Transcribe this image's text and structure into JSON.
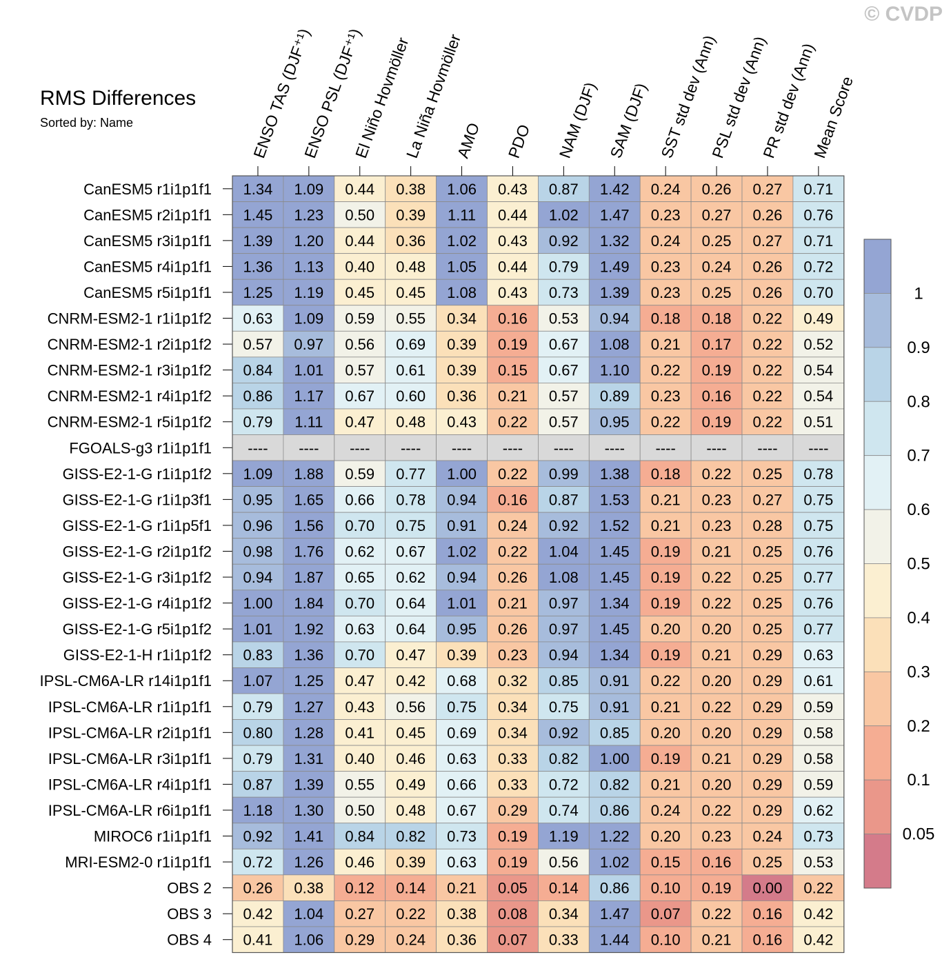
{
  "header": {
    "title": "RMS Differences",
    "subtitle": "Sorted by: Name",
    "copyright": "© CVDP"
  },
  "chart_data": {
    "type": "heatmap",
    "title": "RMS Differences",
    "columns": [
      "ENSO TAS (DJF⁺¹)",
      "ENSO PSL (DJF⁺¹)",
      "El Niño Hovmöller",
      "La Niña Hovmöller",
      "AMO",
      "PDO",
      "NAM (DJF)",
      "SAM (DJF)",
      "SST std dev (Ann)",
      "PSL std dev (Ann)",
      "PR std dev (Ann)",
      "Mean Score"
    ],
    "rows": [
      {
        "name": "CanESM5 r1i1p1f1",
        "values": [
          "1.34",
          "1.09",
          "0.44",
          "0.38",
          "1.06",
          "0.43",
          "0.87",
          "1.42",
          "0.24",
          "0.26",
          "0.27",
          "0.71"
        ]
      },
      {
        "name": "CanESM5 r2i1p1f1",
        "values": [
          "1.45",
          "1.23",
          "0.50",
          "0.39",
          "1.11",
          "0.44",
          "1.02",
          "1.47",
          "0.23",
          "0.27",
          "0.26",
          "0.76"
        ]
      },
      {
        "name": "CanESM5 r3i1p1f1",
        "values": [
          "1.39",
          "1.20",
          "0.44",
          "0.36",
          "1.02",
          "0.43",
          "0.92",
          "1.32",
          "0.24",
          "0.25",
          "0.27",
          "0.71"
        ]
      },
      {
        "name": "CanESM5 r4i1p1f1",
        "values": [
          "1.36",
          "1.13",
          "0.40",
          "0.48",
          "1.05",
          "0.44",
          "0.79",
          "1.49",
          "0.23",
          "0.24",
          "0.26",
          "0.72"
        ]
      },
      {
        "name": "CanESM5 r5i1p1f1",
        "values": [
          "1.25",
          "1.19",
          "0.45",
          "0.45",
          "1.08",
          "0.43",
          "0.73",
          "1.39",
          "0.23",
          "0.25",
          "0.26",
          "0.70"
        ]
      },
      {
        "name": "CNRM-ESM2-1 r1i1p1f2",
        "values": [
          "0.63",
          "1.09",
          "0.59",
          "0.55",
          "0.34",
          "0.16",
          "0.53",
          "0.94",
          "0.18",
          "0.18",
          "0.22",
          "0.49"
        ]
      },
      {
        "name": "CNRM-ESM2-1 r2i1p1f2",
        "values": [
          "0.57",
          "0.97",
          "0.56",
          "0.69",
          "0.39",
          "0.19",
          "0.67",
          "1.08",
          "0.21",
          "0.17",
          "0.22",
          "0.52"
        ]
      },
      {
        "name": "CNRM-ESM2-1 r3i1p1f2",
        "values": [
          "0.84",
          "1.01",
          "0.57",
          "0.61",
          "0.39",
          "0.15",
          "0.67",
          "1.10",
          "0.22",
          "0.19",
          "0.22",
          "0.54"
        ]
      },
      {
        "name": "CNRM-ESM2-1 r4i1p1f2",
        "values": [
          "0.86",
          "1.17",
          "0.67",
          "0.60",
          "0.36",
          "0.21",
          "0.57",
          "0.89",
          "0.23",
          "0.16",
          "0.22",
          "0.54"
        ]
      },
      {
        "name": "CNRM-ESM2-1 r5i1p1f2",
        "values": [
          "0.79",
          "1.11",
          "0.47",
          "0.48",
          "0.43",
          "0.22",
          "0.57",
          "0.95",
          "0.22",
          "0.19",
          "0.22",
          "0.51"
        ]
      },
      {
        "name": "FGOALS-g3 r1i1p1f1",
        "values": [
          "----",
          "----",
          "----",
          "----",
          "----",
          "----",
          "----",
          "----",
          "----",
          "----",
          "----",
          "----"
        ]
      },
      {
        "name": "GISS-E2-1-G r1i1p1f2",
        "values": [
          "1.09",
          "1.88",
          "0.59",
          "0.77",
          "1.00",
          "0.22",
          "0.99",
          "1.38",
          "0.18",
          "0.22",
          "0.25",
          "0.78"
        ]
      },
      {
        "name": "GISS-E2-1-G r1i1p3f1",
        "values": [
          "0.95",
          "1.65",
          "0.66",
          "0.78",
          "0.94",
          "0.16",
          "0.87",
          "1.53",
          "0.21",
          "0.23",
          "0.27",
          "0.75"
        ]
      },
      {
        "name": "GISS-E2-1-G r1i1p5f1",
        "values": [
          "0.96",
          "1.56",
          "0.70",
          "0.75",
          "0.91",
          "0.24",
          "0.92",
          "1.52",
          "0.21",
          "0.23",
          "0.28",
          "0.75"
        ]
      },
      {
        "name": "GISS-E2-1-G r2i1p1f2",
        "values": [
          "0.98",
          "1.76",
          "0.62",
          "0.67",
          "1.02",
          "0.22",
          "1.04",
          "1.45",
          "0.19",
          "0.21",
          "0.25",
          "0.76"
        ]
      },
      {
        "name": "GISS-E2-1-G r3i1p1f2",
        "values": [
          "0.94",
          "1.87",
          "0.65",
          "0.62",
          "0.94",
          "0.26",
          "1.08",
          "1.45",
          "0.19",
          "0.22",
          "0.25",
          "0.77"
        ]
      },
      {
        "name": "GISS-E2-1-G r4i1p1f2",
        "values": [
          "1.00",
          "1.84",
          "0.70",
          "0.64",
          "1.01",
          "0.21",
          "0.97",
          "1.34",
          "0.19",
          "0.22",
          "0.25",
          "0.76"
        ]
      },
      {
        "name": "GISS-E2-1-G r5i1p1f2",
        "values": [
          "1.01",
          "1.92",
          "0.63",
          "0.64",
          "0.95",
          "0.26",
          "0.97",
          "1.45",
          "0.20",
          "0.20",
          "0.25",
          "0.77"
        ]
      },
      {
        "name": "GISS-E2-1-H r1i1p1f2",
        "values": [
          "0.83",
          "1.36",
          "0.70",
          "0.47",
          "0.39",
          "0.23",
          "0.94",
          "1.34",
          "0.19",
          "0.21",
          "0.29",
          "0.63"
        ]
      },
      {
        "name": "IPSL-CM6A-LR r14i1p1f1",
        "values": [
          "1.07",
          "1.25",
          "0.47",
          "0.42",
          "0.68",
          "0.32",
          "0.85",
          "0.91",
          "0.22",
          "0.20",
          "0.29",
          "0.61"
        ]
      },
      {
        "name": "IPSL-CM6A-LR r1i1p1f1",
        "values": [
          "0.79",
          "1.27",
          "0.43",
          "0.56",
          "0.75",
          "0.34",
          "0.75",
          "0.91",
          "0.21",
          "0.22",
          "0.29",
          "0.59"
        ]
      },
      {
        "name": "IPSL-CM6A-LR r2i1p1f1",
        "values": [
          "0.80",
          "1.28",
          "0.41",
          "0.45",
          "0.69",
          "0.34",
          "0.92",
          "0.85",
          "0.20",
          "0.20",
          "0.29",
          "0.58"
        ]
      },
      {
        "name": "IPSL-CM6A-LR r3i1p1f1",
        "values": [
          "0.79",
          "1.31",
          "0.40",
          "0.46",
          "0.63",
          "0.33",
          "0.82",
          "1.00",
          "0.19",
          "0.21",
          "0.29",
          "0.58"
        ]
      },
      {
        "name": "IPSL-CM6A-LR r4i1p1f1",
        "values": [
          "0.87",
          "1.39",
          "0.55",
          "0.49",
          "0.66",
          "0.33",
          "0.72",
          "0.82",
          "0.21",
          "0.20",
          "0.29",
          "0.59"
        ]
      },
      {
        "name": "IPSL-CM6A-LR r6i1p1f1",
        "values": [
          "1.18",
          "1.30",
          "0.50",
          "0.48",
          "0.67",
          "0.29",
          "0.74",
          "0.86",
          "0.24",
          "0.22",
          "0.29",
          "0.62"
        ]
      },
      {
        "name": "MIROC6 r1i1p1f1",
        "values": [
          "0.92",
          "1.41",
          "0.84",
          "0.82",
          "0.73",
          "0.19",
          "1.19",
          "1.22",
          "0.20",
          "0.23",
          "0.24",
          "0.73"
        ]
      },
      {
        "name": "MRI-ESM2-0 r1i1p1f1",
        "values": [
          "0.72",
          "1.26",
          "0.46",
          "0.39",
          "0.63",
          "0.19",
          "0.56",
          "1.02",
          "0.15",
          "0.16",
          "0.25",
          "0.53"
        ]
      },
      {
        "name": "OBS 2",
        "values": [
          "0.26",
          "0.38",
          "0.12",
          "0.14",
          "0.21",
          "0.05",
          "0.14",
          "0.86",
          "0.10",
          "0.19",
          "0.00",
          "0.22"
        ]
      },
      {
        "name": "OBS 3",
        "values": [
          "0.42",
          "1.04",
          "0.27",
          "0.22",
          "0.38",
          "0.08",
          "0.34",
          "1.47",
          "0.07",
          "0.22",
          "0.16",
          "0.42"
        ]
      },
      {
        "name": "OBS 4",
        "values": [
          "0.41",
          "1.06",
          "0.29",
          "0.24",
          "0.36",
          "0.07",
          "0.33",
          "1.44",
          "0.10",
          "0.21",
          "0.16",
          "0.42"
        ]
      }
    ],
    "colorbar": {
      "labels": [
        "1",
        "0.9",
        "0.8",
        "0.7",
        "0.6",
        "0.5",
        "0.4",
        "0.3",
        "0.2",
        "0.1",
        "0.05"
      ],
      "colors": [
        "#94a5d3",
        "#a7bcdc",
        "#b9d4e7",
        "#cfe6ef",
        "#e2f1f5",
        "#f2f2e8",
        "#fbefd1",
        "#fbe0b9",
        "#f9c7a3",
        "#f5ad93",
        "#ea978a",
        "#d47b8a"
      ]
    },
    "missing_color": "#d9d9d9"
  }
}
